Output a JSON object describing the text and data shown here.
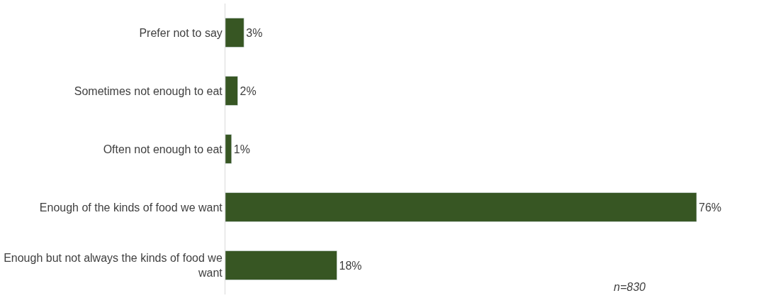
{
  "chart_data": {
    "type": "bar",
    "orientation": "horizontal",
    "categories": [
      "Prefer not to say",
      "Sometimes not enough to eat",
      "Often not enough to eat",
      "Enough of the kinds of food we want",
      "Enough but not always the kinds of food we want"
    ],
    "values": [
      3,
      2,
      1,
      76,
      18
    ],
    "color": "#375623",
    "value_labels": [
      "3%",
      "2%",
      "1%",
      "76%",
      "18%"
    ],
    "tick_labels": "y",
    "annotations": [
      "n=830"
    ]
  }
}
